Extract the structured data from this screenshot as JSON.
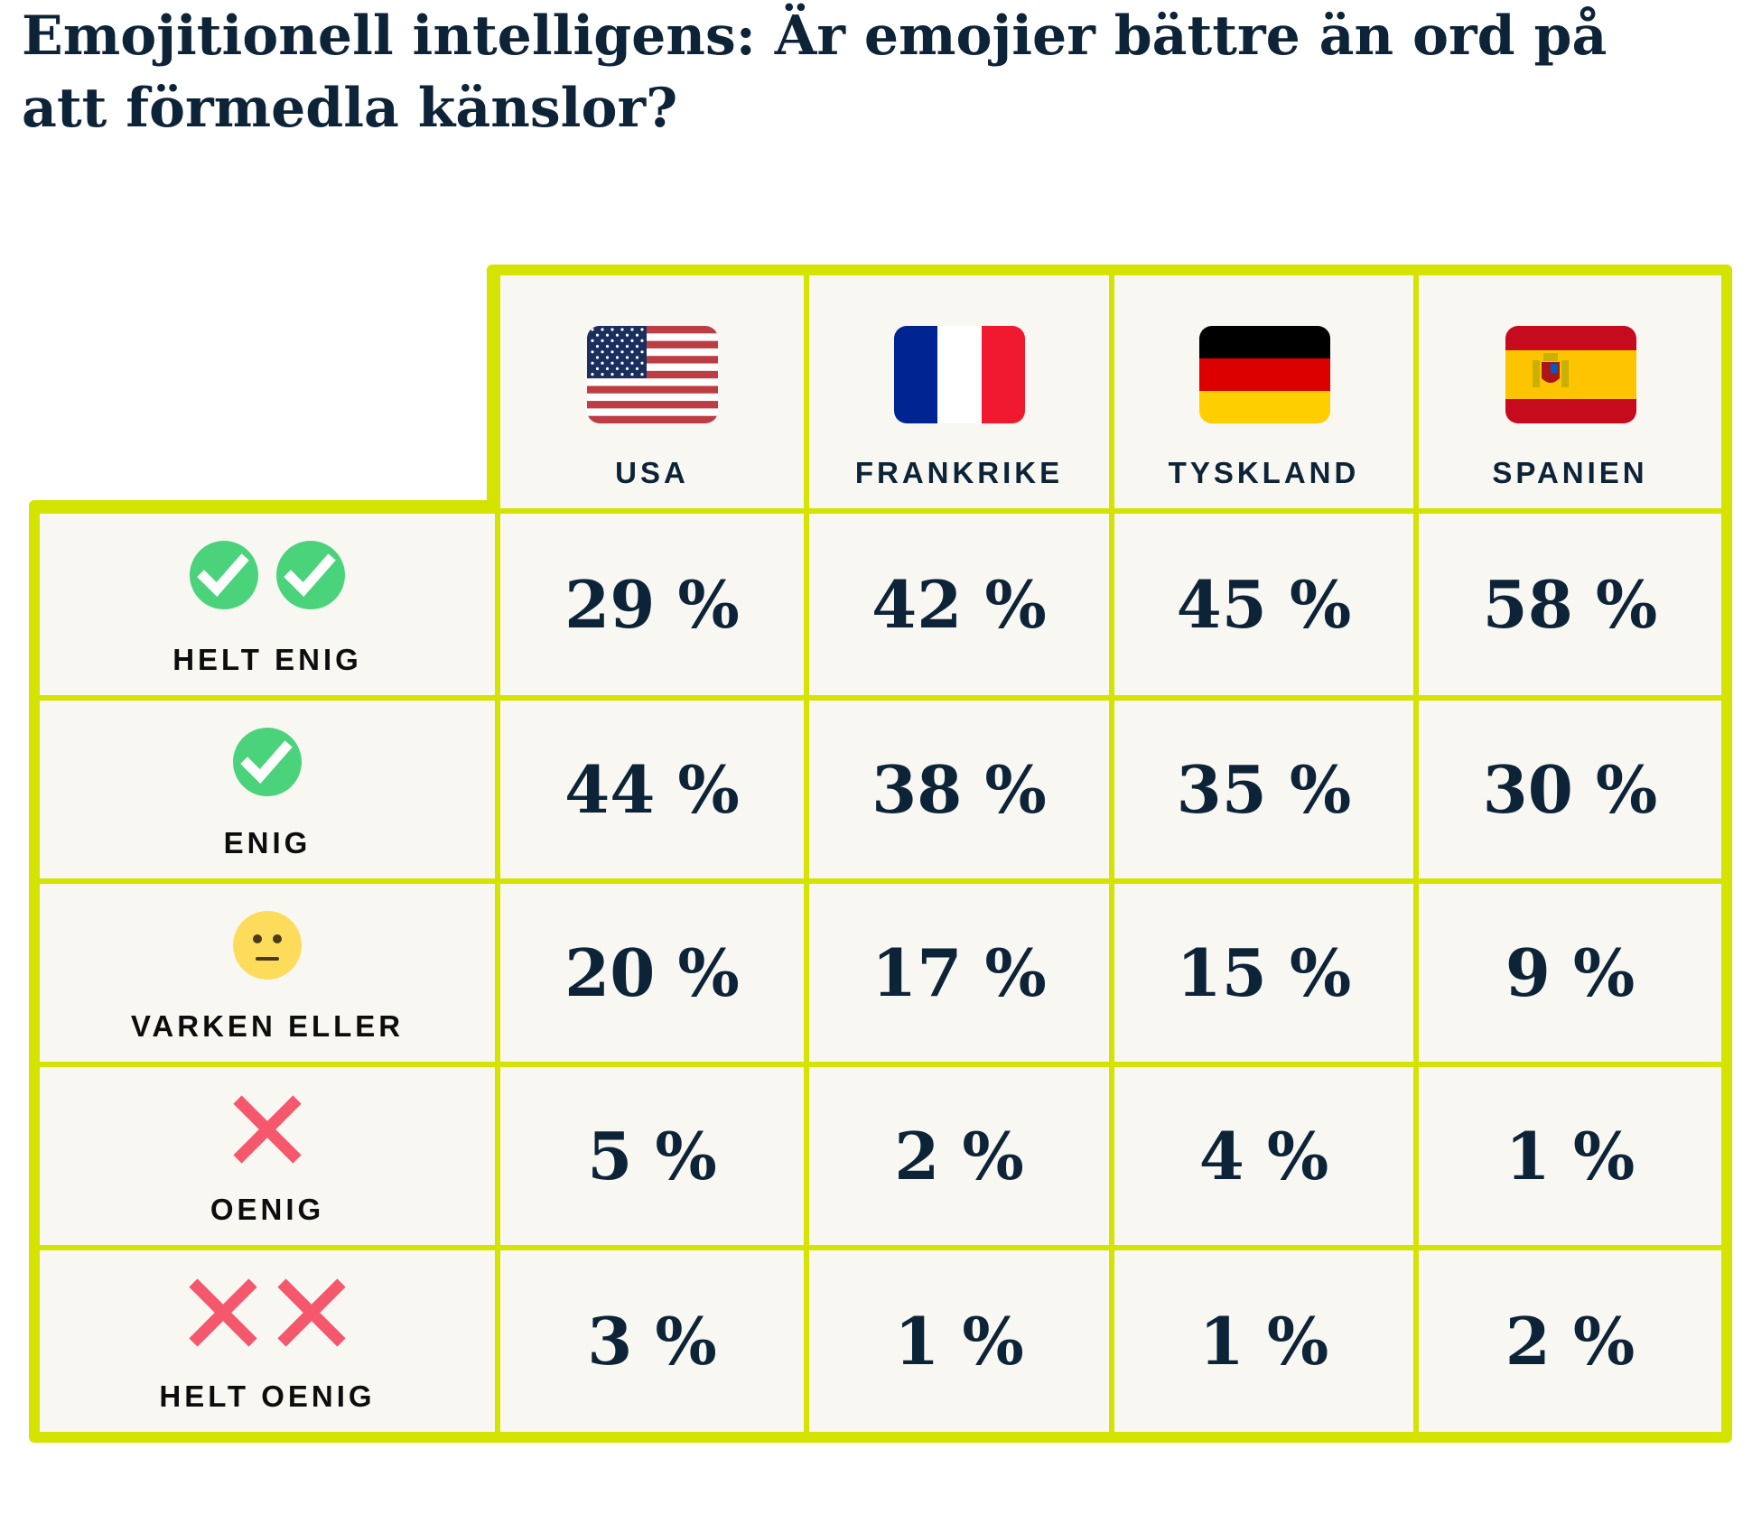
{
  "title": "Emojitionell intelligens: Är emojier bättre än ord på att förmedla känslor?",
  "colors": {
    "border": "#d4e300",
    "cell": "#f8f7f2",
    "text": "#0d2438",
    "check": "#4bd37b",
    "cross": "#f5576c",
    "neutral": "#fddc5c"
  },
  "chart_data": {
    "type": "table",
    "title": "Emojitionell intelligens: Är emojier bättre än ord på att förmedla känslor?",
    "columns": [
      {
        "label": "USA",
        "flag": "us-flag"
      },
      {
        "label": "FRANKRIKE",
        "flag": "france-flag"
      },
      {
        "label": "TYSKLAND",
        "flag": "germany-flag"
      },
      {
        "label": "SPANIEN",
        "flag": "spain-flag"
      }
    ],
    "rows": [
      {
        "label": "HELT ENIG",
        "icon": "double-check-icon",
        "values": [
          "29 %",
          "42 %",
          "45 %",
          "58 %"
        ]
      },
      {
        "label": "ENIG",
        "icon": "check-icon",
        "values": [
          "44 %",
          "38 %",
          "35 %",
          "30 %"
        ]
      },
      {
        "label": "VARKEN ELLER",
        "icon": "neutral-face-icon",
        "values": [
          "20 %",
          "17 %",
          "15 %",
          "9 %"
        ]
      },
      {
        "label": "OENIG",
        "icon": "cross-icon",
        "values": [
          "5 %",
          "2 %",
          "4 %",
          "1 %"
        ]
      },
      {
        "label": "HELT OENIG",
        "icon": "double-cross-icon",
        "values": [
          "3 %",
          "1 %",
          "1 %",
          "2 %"
        ]
      }
    ]
  }
}
